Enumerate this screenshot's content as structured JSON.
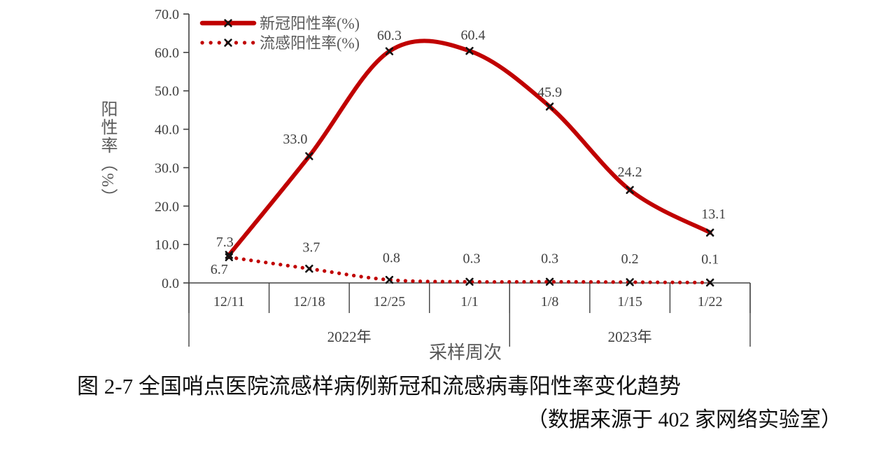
{
  "chart_data": {
    "type": "line",
    "xlabel": "采样周次",
    "ylabel": "阳性率（%）",
    "ylim": [
      0,
      70
    ],
    "grid": false,
    "legend_position": "top-left",
    "y_ticks": [
      "0.0",
      "10.0",
      "20.0",
      "30.0",
      "40.0",
      "50.0",
      "60.0",
      "70.0"
    ],
    "categories": [
      "12/11",
      "12/18",
      "12/25",
      "1/1",
      "1/8",
      "1/15",
      "1/22"
    ],
    "category_groups": [
      {
        "label": "2022年",
        "span": 4
      },
      {
        "label": "2023年",
        "span": 3
      }
    ],
    "series": [
      {
        "name": "新冠阳性率(%)",
        "style": "solid",
        "marker": "x",
        "values": [
          7.3,
          33.0,
          60.3,
          60.4,
          45.9,
          24.2,
          13.1
        ],
        "labels": [
          "7.3",
          "33.0",
          "60.3",
          "60.4",
          "45.9",
          "24.2",
          "13.1"
        ],
        "label_offsets": [
          [
            -6,
            -12
          ],
          [
            -20,
            -18
          ],
          [
            0,
            -16
          ],
          [
            5,
            -16
          ],
          [
            0,
            -14
          ],
          [
            0,
            -19
          ],
          [
            5,
            -20
          ]
        ]
      },
      {
        "name": "流感阳性率(%)",
        "style": "dotted",
        "marker": "x",
        "values": [
          6.7,
          3.7,
          0.8,
          0.3,
          0.3,
          0.2,
          0.1
        ],
        "labels": [
          "6.7",
          "3.7",
          "0.8",
          "0.3",
          "0.3",
          "0.2",
          "0.1"
        ],
        "label_offsets": [
          [
            -14,
            24
          ],
          [
            3,
            -24
          ],
          [
            3,
            -25
          ],
          [
            3,
            -27
          ],
          [
            0,
            -27
          ],
          [
            0,
            -27
          ],
          [
            0,
            -27
          ]
        ]
      }
    ]
  },
  "caption": {
    "line1": "图 2-7 全国哨点医院流感样病例新冠和流感病毒阳性率变化趋势",
    "line2": "（数据来源于 402 家网络实验室）"
  },
  "colors": {
    "series_red": "#c00000",
    "marker_black": "#111111",
    "axis_line": "#404040",
    "tick_text": "#3f3f3f",
    "gray_text": "#595959"
  }
}
